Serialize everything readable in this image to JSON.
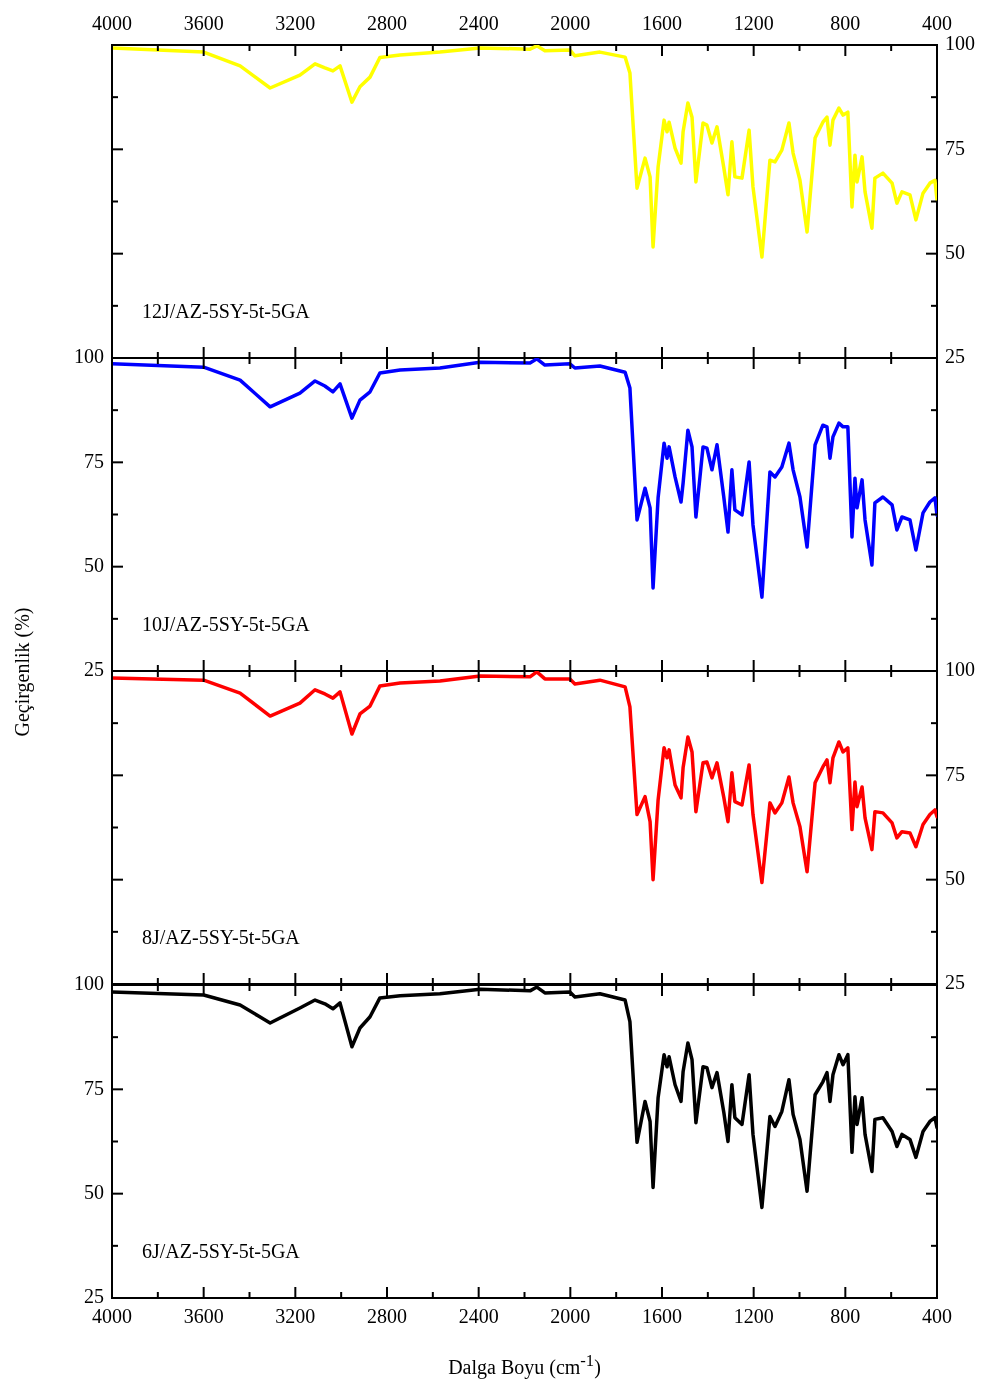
{
  "chart_data": [
    {
      "type": "line",
      "x": [
        4000,
        3600,
        3441,
        3310,
        3180,
        3114,
        3071,
        3036,
        3005,
        2953,
        2918,
        2874,
        2831,
        2743,
        2569,
        2394,
        2176,
        2146,
        2111,
        2002,
        1980,
        1871,
        1761,
        1740,
        1709,
        1674,
        1652,
        1639,
        1617,
        1591,
        1578,
        1569,
        1543,
        1517,
        1508,
        1487,
        1469,
        1452,
        1421,
        1404,
        1382,
        1360,
        1330,
        1312,
        1295,
        1282,
        1251,
        1220,
        1203,
        1164,
        1129,
        1107,
        1077,
        1046,
        1028,
        998,
        967,
        932,
        898,
        880,
        867,
        854,
        828,
        810,
        789,
        771,
        758,
        749,
        727,
        714,
        684,
        671,
        636,
        596,
        575,
        553,
        518,
        492,
        461,
        431,
        409,
        400
      ],
      "series": [
        {
          "name": "12J/AZ-5SY-5t-5GA",
          "color": "#ffff00",
          "axis": "y2",
          "values": [
            99.3,
            98.3,
            95,
            89.7,
            92.8,
            95.5,
            94.5,
            93.8,
            95,
            86.3,
            90,
            92.3,
            97,
            97.6,
            98.3,
            99.3,
            99,
            99.8,
            98.6,
            98.8,
            97.4,
            98.3,
            97.1,
            93.3,
            65.7,
            72.9,
            68.4,
            51.6,
            70.8,
            82,
            79.2,
            81.5,
            75.3,
            71.7,
            79.2,
            86.1,
            82.7,
            67.2,
            81.3,
            80.8,
            76.5,
            80.4,
            70.5,
            64.1,
            76.8,
            68.4,
            68.1,
            79.6,
            66,
            49.2,
            72.4,
            72,
            74.8,
            81.3,
            74.1,
            67.6,
            55.2,
            77.7,
            81.5,
            82.7,
            76,
            82,
            84.9,
            83.2,
            83.9,
            61.2,
            73.6,
            67.2,
            73.2,
            64.8,
            56.1,
            68.1,
            69.3,
            66.9,
            62.1,
            64.8,
            64.1,
            58.1,
            64.5,
            66.9,
            67.6,
            62.9
          ]
        }
      ],
      "xlim": [
        4000,
        400
      ],
      "xticks": [
        4000,
        {
          "value": 3800,
          "label": null
        },
        3600,
        {
          "value": 3400,
          "label": null
        },
        3200,
        {
          "value": 3000,
          "label": null
        },
        2800,
        {
          "value": 2600,
          "label": null
        },
        2400,
        {
          "value": 2200,
          "label": null
        },
        2000,
        {
          "value": 1800,
          "label": null
        },
        1600,
        {
          "value": 1400,
          "label": null
        },
        1200,
        {
          "value": 1000,
          "label": null
        },
        800,
        {
          "value": 600,
          "label": null
        },
        400
      ],
      "x2lim": [
        4000,
        400
      ],
      "x2ticks": [
        4000,
        {
          "value": 3800,
          "label": null
        },
        3600,
        {
          "value": 3400,
          "label": null
        },
        3200,
        {
          "value": 3000,
          "label": null
        },
        2800,
        {
          "value": 2600,
          "label": null
        },
        2400,
        {
          "value": 2200,
          "label": null
        },
        2000,
        {
          "value": 1800,
          "label": null
        },
        1600,
        {
          "value": 1400,
          "label": null
        },
        1200,
        {
          "value": 1000,
          "label": null
        },
        800,
        {
          "value": 600,
          "label": null
        },
        400
      ],
      "y2lim": [
        25,
        100
      ],
      "y2ticks": [
        25,
        {
          "value": 37.5,
          "label": null
        },
        50,
        {
          "value": 62.5,
          "label": null
        },
        75,
        {
          "value": 87.5,
          "label": null
        },
        100
      ],
      "tick_labels": "y"
    },
    {
      "type": "line",
      "ylabel": "Geçirgenlik (%)",
      "x": [
        4000,
        3600,
        3441,
        3310,
        3180,
        3114,
        3071,
        3036,
        3005,
        2953,
        2918,
        2874,
        2831,
        2743,
        2569,
        2394,
        2176,
        2146,
        2111,
        2002,
        1980,
        1871,
        1761,
        1740,
        1709,
        1674,
        1652,
        1639,
        1617,
        1591,
        1578,
        1569,
        1543,
        1517,
        1508,
        1487,
        1469,
        1452,
        1421,
        1404,
        1382,
        1360,
        1330,
        1312,
        1295,
        1282,
        1251,
        1220,
        1203,
        1164,
        1129,
        1107,
        1077,
        1046,
        1028,
        998,
        967,
        932,
        898,
        880,
        867,
        854,
        828,
        810,
        789,
        771,
        758,
        749,
        727,
        714,
        684,
        671,
        636,
        596,
        575,
        553,
        518,
        492,
        461,
        431,
        409,
        400
      ],
      "series": [
        {
          "name": "10J/AZ-5SY-5t-5GA",
          "color": "#0000ff",
          "values": [
            98.6,
            97.8,
            94.7,
            88.3,
            91.6,
            94.5,
            93.3,
            91.9,
            93.8,
            85.6,
            89.9,
            91.9,
            96.4,
            97.1,
            97.6,
            99,
            98.8,
            99.8,
            98.3,
            98.6,
            97.6,
            98.1,
            96.6,
            92.8,
            61.2,
            68.8,
            64.1,
            44.9,
            66.5,
            79.6,
            76,
            78.7,
            71.5,
            65.5,
            70,
            82.7,
            78.7,
            61.9,
            78.7,
            78.4,
            73.2,
            79.2,
            66.5,
            58.3,
            73.2,
            63.6,
            62.4,
            75.1,
            60,
            42.7,
            72.7,
            71.5,
            73.9,
            79.6,
            73.2,
            66.7,
            54.7,
            79.2,
            83.9,
            83.5,
            76,
            81.1,
            84.4,
            83.5,
            83.5,
            57.1,
            71.2,
            64.1,
            70.8,
            61.2,
            50.4,
            65.3,
            66.7,
            64.8,
            58.8,
            61.9,
            61.2,
            54,
            62.9,
            65.5,
            66.5,
            62.4
          ]
        }
      ],
      "xlim": [
        4000,
        400
      ],
      "xticks": [
        4000,
        {
          "value": 3800,
          "label": null
        },
        3600,
        {
          "value": 3400,
          "label": null
        },
        3200,
        {
          "value": 3000,
          "label": null
        },
        2800,
        {
          "value": 2600,
          "label": null
        },
        2400,
        {
          "value": 2200,
          "label": null
        },
        2000,
        {
          "value": 1800,
          "label": null
        },
        1600,
        {
          "value": 1400,
          "label": null
        },
        1200,
        {
          "value": 1000,
          "label": null
        },
        800,
        {
          "value": 600,
          "label": null
        },
        400
      ],
      "ylim": [
        25,
        100
      ],
      "yticks": [
        25,
        {
          "value": 37.5,
          "label": null
        },
        50,
        {
          "value": 62.5,
          "label": null
        },
        75,
        {
          "value": 87.5,
          "label": null
        },
        100
      ],
      "tick_labels": "y"
    },
    {
      "type": "line",
      "x": [
        4000,
        3600,
        3441,
        3310,
        3180,
        3114,
        3071,
        3036,
        3005,
        2953,
        2918,
        2874,
        2831,
        2743,
        2569,
        2394,
        2176,
        2146,
        2111,
        2002,
        1980,
        1871,
        1761,
        1740,
        1709,
        1674,
        1652,
        1639,
        1617,
        1591,
        1578,
        1569,
        1543,
        1517,
        1508,
        1487,
        1469,
        1452,
        1421,
        1404,
        1382,
        1360,
        1330,
        1312,
        1295,
        1282,
        1251,
        1220,
        1203,
        1164,
        1129,
        1107,
        1077,
        1046,
        1028,
        998,
        967,
        932,
        898,
        880,
        867,
        854,
        828,
        810,
        789,
        771,
        758,
        749,
        727,
        714,
        684,
        671,
        636,
        596,
        575,
        553,
        518,
        492,
        461,
        431,
        409,
        400
      ],
      "series": [
        {
          "name": "8J/AZ-5SY-5t-5GA",
          "color": "#ff0000",
          "axis": "y2",
          "values": [
            98.3,
            97.8,
            94.7,
            89.2,
            92.3,
            95.5,
            94.5,
            93.5,
            95,
            84.9,
            89.7,
            91.6,
            96.4,
            97.1,
            97.6,
            98.8,
            98.6,
            99.8,
            98.1,
            98.1,
            96.9,
            97.8,
            96.2,
            91.4,
            65.6,
            69.9,
            63.9,
            50,
            69.1,
            81.6,
            79.2,
            81.1,
            72.7,
            69.6,
            76.8,
            84.2,
            80.6,
            66.3,
            78,
            78.2,
            74.4,
            78,
            69.6,
            63.9,
            75.6,
            68.7,
            67.9,
            77.5,
            65.6,
            49.3,
            68.4,
            66,
            68.4,
            74.6,
            68.4,
            62.7,
            51.9,
            73.2,
            77,
            78.7,
            73.2,
            79.2,
            83,
            80.6,
            81.6,
            62,
            73.4,
            67.5,
            72.2,
            64.8,
            57.2,
            66.3,
            66,
            63.6,
            60,
            61.5,
            61.2,
            57.9,
            63.2,
            65.6,
            66.7,
            65.1
          ]
        }
      ],
      "xlim": [
        4000,
        400
      ],
      "xticks": [
        4000,
        {
          "value": 3800,
          "label": null
        },
        3600,
        {
          "value": 3400,
          "label": null
        },
        3200,
        {
          "value": 3000,
          "label": null
        },
        2800,
        {
          "value": 2600,
          "label": null
        },
        2400,
        {
          "value": 2200,
          "label": null
        },
        2000,
        {
          "value": 1800,
          "label": null
        },
        1600,
        {
          "value": 1400,
          "label": null
        },
        1200,
        {
          "value": 1000,
          "label": null
        },
        800,
        {
          "value": 600,
          "label": null
        },
        400
      ],
      "y2lim": [
        25,
        100
      ],
      "y2ticks": [
        25,
        {
          "value": 37.5,
          "label": null
        },
        50,
        {
          "value": 62.5,
          "label": null
        },
        75,
        {
          "value": 87.5,
          "label": null
        },
        100
      ],
      "tick_labels": "y"
    },
    {
      "type": "line",
      "xlabel": "Dalga Boyu (cm$^{-1}$)",
      "x": [
        4000,
        3600,
        3441,
        3310,
        3180,
        3114,
        3071,
        3036,
        3005,
        2953,
        2918,
        2874,
        2831,
        2743,
        2569,
        2394,
        2176,
        2146,
        2111,
        2002,
        1980,
        1871,
        1761,
        1740,
        1709,
        1674,
        1652,
        1639,
        1617,
        1591,
        1578,
        1569,
        1543,
        1517,
        1508,
        1487,
        1469,
        1452,
        1421,
        1404,
        1382,
        1360,
        1330,
        1312,
        1295,
        1282,
        1251,
        1220,
        1203,
        1164,
        1129,
        1107,
        1077,
        1046,
        1028,
        998,
        967,
        932,
        898,
        880,
        867,
        854,
        828,
        810,
        789,
        771,
        758,
        749,
        727,
        714,
        684,
        671,
        636,
        596,
        575,
        553,
        518,
        492,
        461,
        431,
        409,
        400
      ],
      "series": [
        {
          "name": "6J/AZ-5SY-5t-5GA",
          "color": "#000000",
          "values": [
            98.3,
            97.6,
            95.2,
            90.9,
            94.5,
            96.4,
            95.5,
            94.3,
            95.7,
            85.2,
            89.7,
            92.4,
            96.9,
            97.4,
            97.9,
            99,
            98.6,
            99.5,
            98.1,
            98.3,
            97.1,
            97.9,
            96.4,
            91.2,
            62.3,
            72.1,
            67.3,
            51.5,
            73,
            83.3,
            80.4,
            82.8,
            76.1,
            72.1,
            79.2,
            86.1,
            82.1,
            67,
            80.4,
            80.2,
            75.4,
            79,
            69.4,
            62.5,
            76.1,
            68.2,
            66.6,
            78.5,
            64.2,
            46.7,
            68.5,
            66.1,
            69.7,
            77.3,
            69,
            63,
            50.6,
            73.7,
            76.8,
            79,
            72.1,
            78.5,
            83.3,
            80.9,
            83.3,
            59.9,
            73.2,
            66.6,
            73,
            64.2,
            55.3,
            67.8,
            68.2,
            64.9,
            61.3,
            64.2,
            63,
            58.7,
            64.9,
            67.3,
            68.2,
            65.8
          ]
        }
      ],
      "xlim": [
        4000,
        400
      ],
      "xticks": [
        4000,
        {
          "value": 3800,
          "label": null
        },
        3600,
        {
          "value": 3400,
          "label": null
        },
        3200,
        {
          "value": 3000,
          "label": null
        },
        2800,
        {
          "value": 2600,
          "label": null
        },
        2400,
        {
          "value": 2200,
          "label": null
        },
        2000,
        {
          "value": 1800,
          "label": null
        },
        1600,
        {
          "value": 1400,
          "label": null
        },
        1200,
        {
          "value": 1000,
          "label": null
        },
        800,
        {
          "value": 600,
          "label": null
        },
        400
      ],
      "ylim": [
        25,
        100
      ],
      "yticks": [
        25,
        {
          "value": 37.5,
          "label": null
        },
        50,
        {
          "value": 62.5,
          "label": null
        },
        75,
        {
          "value": 87.5,
          "label": null
        },
        100
      ]
    }
  ]
}
